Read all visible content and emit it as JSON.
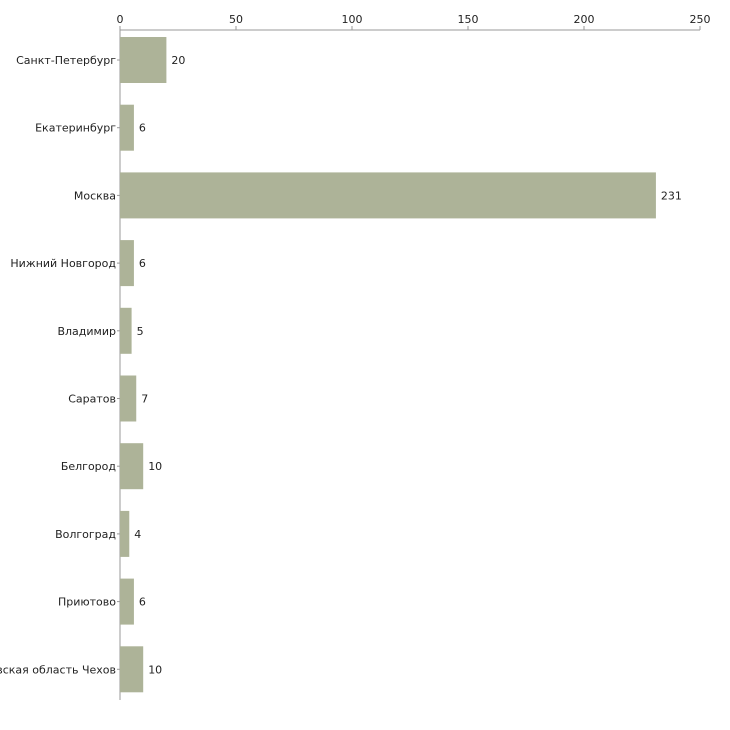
{
  "chart_data": {
    "type": "bar",
    "orientation": "horizontal",
    "title": "",
    "xlabel": "",
    "ylabel": "",
    "xlim": [
      0,
      250
    ],
    "x_ticks": [
      0,
      50,
      100,
      150,
      200,
      250
    ],
    "x_tick_labels": [
      "0",
      "50",
      "100",
      "150",
      "200",
      "250"
    ],
    "grid": false,
    "bar_color": "#adb398",
    "categories": [
      "Санкт-Петербург",
      "Екатеринбург",
      "Москва",
      "Нижний Новгород",
      "Владимир",
      "Саратов",
      "Белгород",
      "Волгоград",
      "Приютово",
      "Московская область Чехов"
    ],
    "values": [
      20,
      6,
      231,
      6,
      5,
      7,
      10,
      4,
      6,
      10
    ],
    "value_labels": [
      "20",
      "6",
      "231",
      "6",
      "5",
      "7",
      "10",
      "4",
      "6",
      "10"
    ]
  }
}
